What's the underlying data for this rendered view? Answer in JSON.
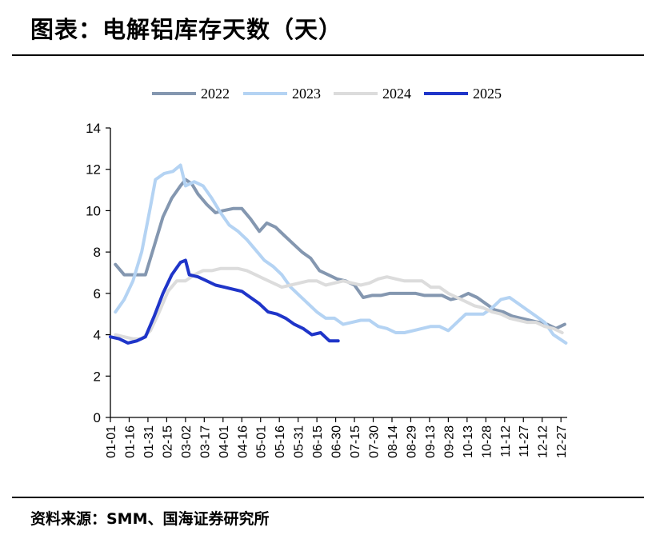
{
  "header": {
    "title": "图表：电解铝库存天数（天）"
  },
  "footer": {
    "source": "资料来源：SMM、国海证券研究所"
  },
  "colors": {
    "2022": "#8497b0",
    "2023": "#b4d3f3",
    "2024": "#dcdcdc",
    "2025": "#1f35c9"
  },
  "chart_data": {
    "type": "line",
    "title": "",
    "ylim": [
      0,
      14
    ],
    "y_ticks": [
      "0",
      "2",
      "4",
      "6",
      "8",
      "10",
      "12",
      "14"
    ],
    "x_ticks": [
      "01-01",
      "01-16",
      "01-31",
      "02-15",
      "03-02",
      "03-17",
      "04-01",
      "04-16",
      "05-01",
      "05-16",
      "05-31",
      "06-15",
      "06-30",
      "07-15",
      "07-30",
      "08-14",
      "08-29",
      "09-13",
      "09-28",
      "10-13",
      "10-28",
      "11-12",
      "11-27",
      "12-12",
      "12-27"
    ],
    "legend_position": "top",
    "series": [
      {
        "name": "2022",
        "color": "#8497b0",
        "points": [
          [
            "01-05",
            7.4
          ],
          [
            "01-12",
            6.9
          ],
          [
            "01-22",
            6.9
          ],
          [
            "01-29",
            6.9
          ],
          [
            "02-05",
            8.3
          ],
          [
            "02-12",
            9.7
          ],
          [
            "02-19",
            10.6
          ],
          [
            "02-26",
            11.2
          ],
          [
            "03-02",
            11.5
          ],
          [
            "03-07",
            11.3
          ],
          [
            "03-12",
            10.8
          ],
          [
            "03-19",
            10.3
          ],
          [
            "03-26",
            9.9
          ],
          [
            "04-01",
            10.0
          ],
          [
            "04-09",
            10.1
          ],
          [
            "04-16",
            10.1
          ],
          [
            "04-23",
            9.6
          ],
          [
            "04-30",
            9.0
          ],
          [
            "05-06",
            9.4
          ],
          [
            "05-13",
            9.2
          ],
          [
            "05-20",
            8.8
          ],
          [
            "05-27",
            8.4
          ],
          [
            "06-03",
            8.0
          ],
          [
            "06-10",
            7.7
          ],
          [
            "06-17",
            7.1
          ],
          [
            "06-24",
            6.9
          ],
          [
            "07-01",
            6.7
          ],
          [
            "07-08",
            6.6
          ],
          [
            "07-15",
            6.4
          ],
          [
            "07-22",
            5.8
          ],
          [
            "07-29",
            5.9
          ],
          [
            "08-05",
            5.9
          ],
          [
            "08-12",
            6.0
          ],
          [
            "08-19",
            6.0
          ],
          [
            "08-26",
            6.0
          ],
          [
            "09-02",
            6.0
          ],
          [
            "09-09",
            5.9
          ],
          [
            "09-16",
            5.9
          ],
          [
            "09-23",
            5.9
          ],
          [
            "09-30",
            5.7
          ],
          [
            "10-07",
            5.8
          ],
          [
            "10-14",
            6.0
          ],
          [
            "10-21",
            5.8
          ],
          [
            "10-28",
            5.5
          ],
          [
            "11-04",
            5.2
          ],
          [
            "11-11",
            5.1
          ],
          [
            "11-18",
            4.9
          ],
          [
            "11-25",
            4.8
          ],
          [
            "12-02",
            4.7
          ],
          [
            "12-09",
            4.6
          ],
          [
            "12-16",
            4.5
          ],
          [
            "12-23",
            4.3
          ],
          [
            "12-30",
            4.5
          ]
        ]
      },
      {
        "name": "2023",
        "color": "#b4d3f3",
        "points": [
          [
            "01-05",
            5.1
          ],
          [
            "01-12",
            5.7
          ],
          [
            "01-19",
            6.6
          ],
          [
            "01-26",
            8.0
          ],
          [
            "02-02",
            10.2
          ],
          [
            "02-06",
            11.5
          ],
          [
            "02-13",
            11.8
          ],
          [
            "02-20",
            11.9
          ],
          [
            "02-26",
            12.2
          ],
          [
            "03-02",
            11.2
          ],
          [
            "03-09",
            11.4
          ],
          [
            "03-16",
            11.2
          ],
          [
            "03-23",
            10.6
          ],
          [
            "03-30",
            9.9
          ],
          [
            "04-06",
            9.3
          ],
          [
            "04-13",
            9.0
          ],
          [
            "04-20",
            8.6
          ],
          [
            "04-27",
            8.1
          ],
          [
            "05-04",
            7.6
          ],
          [
            "05-11",
            7.3
          ],
          [
            "05-18",
            6.9
          ],
          [
            "05-25",
            6.3
          ],
          [
            "06-01",
            5.9
          ],
          [
            "06-08",
            5.5
          ],
          [
            "06-15",
            5.1
          ],
          [
            "06-22",
            4.8
          ],
          [
            "06-29",
            4.8
          ],
          [
            "07-06",
            4.5
          ],
          [
            "07-13",
            4.6
          ],
          [
            "07-20",
            4.7
          ],
          [
            "07-27",
            4.7
          ],
          [
            "08-03",
            4.4
          ],
          [
            "08-10",
            4.3
          ],
          [
            "08-17",
            4.1
          ],
          [
            "08-24",
            4.1
          ],
          [
            "08-31",
            4.2
          ],
          [
            "09-07",
            4.3
          ],
          [
            "09-14",
            4.4
          ],
          [
            "09-21",
            4.4
          ],
          [
            "09-28",
            4.2
          ],
          [
            "10-05",
            4.6
          ],
          [
            "10-12",
            5.0
          ],
          [
            "10-19",
            5.0
          ],
          [
            "10-26",
            5.0
          ],
          [
            "11-02",
            5.3
          ],
          [
            "11-09",
            5.7
          ],
          [
            "11-16",
            5.8
          ],
          [
            "11-23",
            5.5
          ],
          [
            "11-30",
            5.2
          ],
          [
            "12-07",
            4.9
          ],
          [
            "12-14",
            4.6
          ],
          [
            "12-21",
            4.0
          ],
          [
            "12-31",
            3.6
          ]
        ]
      },
      {
        "name": "2024",
        "color": "#dcdcdc",
        "points": [
          [
            "01-05",
            4.0
          ],
          [
            "01-12",
            3.9
          ],
          [
            "01-19",
            3.8
          ],
          [
            "01-26",
            3.8
          ],
          [
            "02-02",
            4.2
          ],
          [
            "02-09",
            5.1
          ],
          [
            "02-16",
            6.1
          ],
          [
            "02-23",
            6.6
          ],
          [
            "03-02",
            6.6
          ],
          [
            "03-09",
            6.9
          ],
          [
            "03-16",
            7.1
          ],
          [
            "03-23",
            7.1
          ],
          [
            "03-30",
            7.2
          ],
          [
            "04-06",
            7.2
          ],
          [
            "04-13",
            7.2
          ],
          [
            "04-20",
            7.1
          ],
          [
            "04-27",
            6.9
          ],
          [
            "05-04",
            6.7
          ],
          [
            "05-11",
            6.5
          ],
          [
            "05-18",
            6.3
          ],
          [
            "05-25",
            6.4
          ],
          [
            "06-01",
            6.5
          ],
          [
            "06-08",
            6.6
          ],
          [
            "06-15",
            6.6
          ],
          [
            "06-22",
            6.4
          ],
          [
            "06-29",
            6.5
          ],
          [
            "07-06",
            6.6
          ],
          [
            "07-13",
            6.5
          ],
          [
            "07-20",
            6.4
          ],
          [
            "07-27",
            6.5
          ],
          [
            "08-03",
            6.7
          ],
          [
            "08-10",
            6.8
          ],
          [
            "08-17",
            6.7
          ],
          [
            "08-24",
            6.6
          ],
          [
            "08-31",
            6.6
          ],
          [
            "09-07",
            6.6
          ],
          [
            "09-14",
            6.3
          ],
          [
            "09-21",
            6.3
          ],
          [
            "09-28",
            6.0
          ],
          [
            "10-05",
            5.8
          ],
          [
            "10-12",
            5.6
          ],
          [
            "10-19",
            5.4
          ],
          [
            "10-26",
            5.3
          ],
          [
            "11-02",
            5.1
          ],
          [
            "11-09",
            5.0
          ],
          [
            "11-16",
            4.8
          ],
          [
            "11-23",
            4.7
          ],
          [
            "11-30",
            4.6
          ],
          [
            "12-07",
            4.6
          ],
          [
            "12-14",
            4.4
          ],
          [
            "12-21",
            4.3
          ],
          [
            "12-28",
            4.1
          ]
        ]
      },
      {
        "name": "2025",
        "color": "#1f35c9",
        "points": [
          [
            "01-01",
            3.9
          ],
          [
            "01-08",
            3.8
          ],
          [
            "01-15",
            3.6
          ],
          [
            "01-22",
            3.7
          ],
          [
            "01-29",
            3.9
          ],
          [
            "02-05",
            4.9
          ],
          [
            "02-12",
            6.0
          ],
          [
            "02-19",
            6.9
          ],
          [
            "02-26",
            7.5
          ],
          [
            "03-02",
            7.6
          ],
          [
            "03-05",
            6.9
          ],
          [
            "03-12",
            6.8
          ],
          [
            "03-19",
            6.6
          ],
          [
            "03-26",
            6.4
          ],
          [
            "04-02",
            6.3
          ],
          [
            "04-09",
            6.2
          ],
          [
            "04-16",
            6.1
          ],
          [
            "04-23",
            5.8
          ],
          [
            "04-30",
            5.5
          ],
          [
            "05-07",
            5.1
          ],
          [
            "05-14",
            5.0
          ],
          [
            "05-21",
            4.8
          ],
          [
            "05-28",
            4.5
          ],
          [
            "06-04",
            4.3
          ],
          [
            "06-11",
            4.0
          ],
          [
            "06-18",
            4.1
          ],
          [
            "06-25",
            3.7
          ],
          [
            "07-02",
            3.7
          ]
        ]
      }
    ]
  }
}
